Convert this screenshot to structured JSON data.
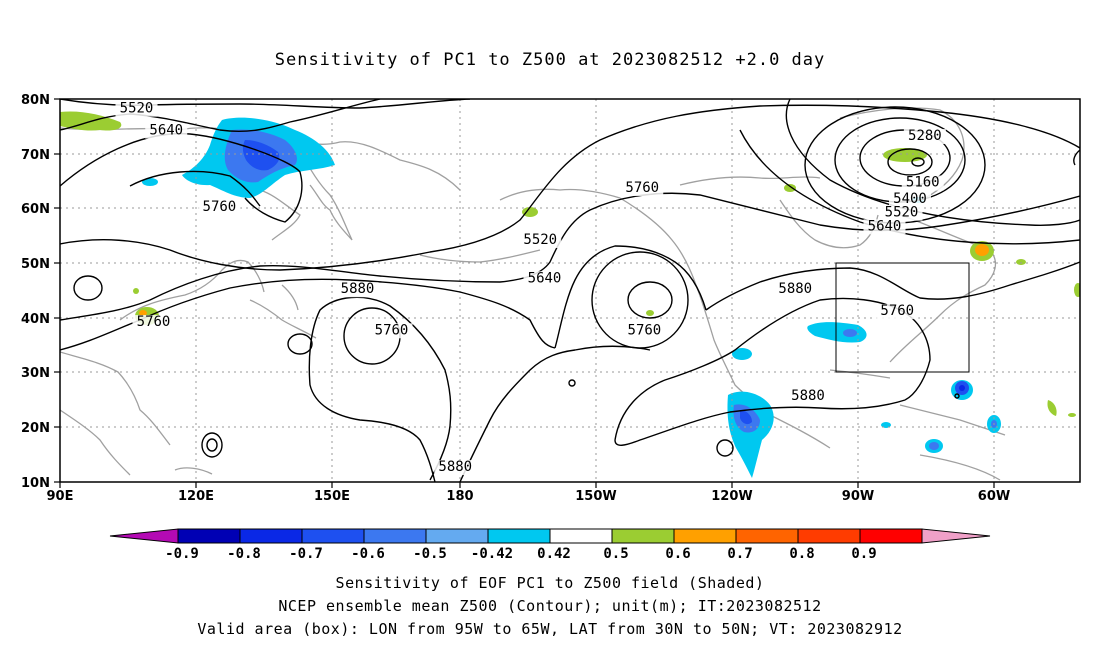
{
  "title": "Sensitivity of PC1 to Z500 at 2023082512 +2.0 day",
  "map": {
    "lat_labels": [
      "80N",
      "70N",
      "60N",
      "50N",
      "40N",
      "30N",
      "20N",
      "10N"
    ],
    "lon_labels": [
      "90E",
      "120E",
      "150E",
      "180",
      "150W",
      "120W",
      "90W",
      "60W"
    ],
    "contour_labels": [
      {
        "text": "5520",
        "lon": 108,
        "lat": 77.5
      },
      {
        "text": "5640",
        "lon": 115,
        "lat": 73.5
      },
      {
        "text": "5760",
        "lon": 127.5,
        "lat": 59.5
      },
      {
        "text": "5760",
        "lon": 112,
        "lat": 38.5
      },
      {
        "text": "5880",
        "lon": 160,
        "lat": 44.5
      },
      {
        "text": "5760",
        "lon": 168,
        "lat": 37
      },
      {
        "text": "5880",
        "lon": 183,
        "lat": 12
      },
      {
        "text": "5520",
        "lon": 203,
        "lat": 53.5
      },
      {
        "text": "5640",
        "lon": 204,
        "lat": 46.5
      },
      {
        "text": "5760",
        "lon": 227.5,
        "lat": 37
      },
      {
        "text": "5760",
        "lon": 227,
        "lat": 63
      },
      {
        "text": "5880",
        "lon": 263,
        "lat": 44.5
      },
      {
        "text": "5880",
        "lon": 266,
        "lat": 25
      },
      {
        "text": "5760",
        "lon": 287,
        "lat": 40.5
      },
      {
        "text": "5280",
        "lon": 293.5,
        "lat": 72.5
      },
      {
        "text": "5160",
        "lon": 293,
        "lat": 64
      },
      {
        "text": "5400",
        "lon": 290,
        "lat": 61
      },
      {
        "text": "5520",
        "lon": 288,
        "lat": 58.5
      },
      {
        "text": "5640",
        "lon": 284,
        "lat": 56
      }
    ],
    "valid_box": {
      "lon_min": 265,
      "lon_max": 295,
      "lat_min": 30,
      "lat_max": 50
    }
  },
  "colorbar": {
    "tick_labels": [
      "-0.9",
      "-0.8",
      "-0.7",
      "-0.6",
      "-0.5",
      "-0.42",
      "0.42",
      "0.5",
      "0.6",
      "0.7",
      "0.8",
      "0.9"
    ],
    "colors": [
      "#b40ab4",
      "#0000b4",
      "#0a28e6",
      "#1e50f0",
      "#3c78f0",
      "#64aaf0",
      "#00c8f0",
      "#ffffff",
      "#9bcd32",
      "#ffa000",
      "#ff6400",
      "#ff3c00",
      "#ff0000",
      "#f0a0c8"
    ]
  },
  "caption": {
    "line1": "Sensitivity of EOF PC1 to Z500 field (Shaded)",
    "line2": "NCEP ensemble mean Z500 (Contour); unit(m); IT:2023082512",
    "line3": "Valid area (box): LON from 95W to 65W, LAT from 30N to 50N; VT: 2023082912"
  }
}
